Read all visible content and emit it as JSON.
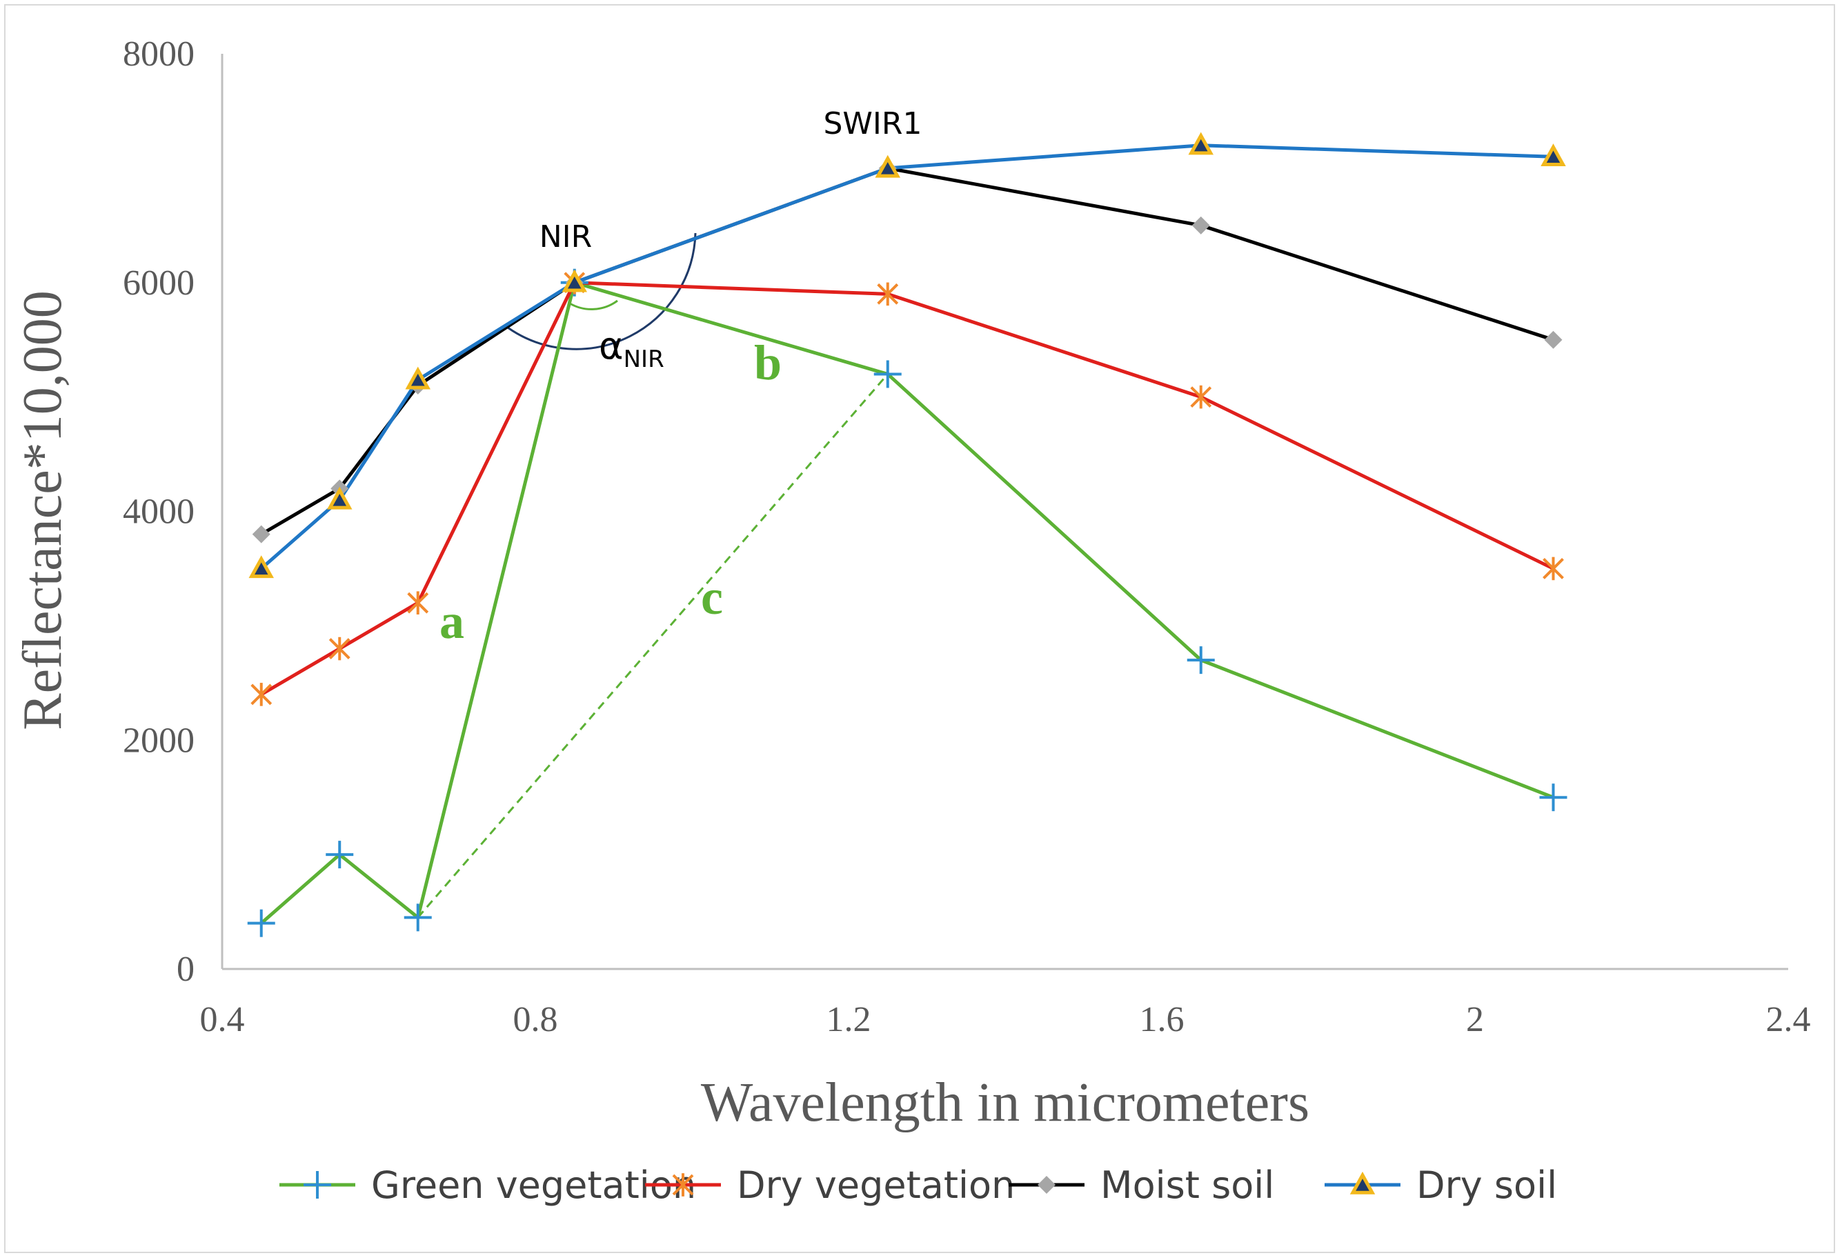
{
  "chart_data": {
    "type": "line",
    "title": "",
    "xlabel": "Wavelength in micrometers",
    "ylabel": "Reflectance*10,000",
    "xlim": [
      0.4,
      2.4
    ],
    "ylim": [
      0,
      8000
    ],
    "x_ticks": [
      "0.4",
      "0.8",
      "1.2",
      "1.6",
      "2",
      "2.4"
    ],
    "y_ticks": [
      "0",
      "2000",
      "4000",
      "6000",
      "8000"
    ],
    "x": [
      0.45,
      0.55,
      0.65,
      0.85,
      1.25,
      1.65,
      2.1
    ],
    "series": [
      {
        "name": "Green vegetation",
        "color": "#5cb135",
        "marker": "plus",
        "marker_color": "#2e8fd1",
        "values": [
          400,
          1000,
          450,
          6000,
          5200,
          2700,
          1500
        ]
      },
      {
        "name": "Dry vegetation",
        "color": "#e0201c",
        "marker": "asterisk",
        "marker_color": "#f2892b",
        "values": [
          2400,
          2800,
          3200,
          6000,
          5900,
          5000,
          3500
        ]
      },
      {
        "name": "Moist soil",
        "color": "#000000",
        "marker": "diamond",
        "marker_color": "#a6a6a6",
        "values": [
          3800,
          4200,
          5100,
          6000,
          7000,
          6500,
          5500
        ]
      },
      {
        "name": "Dry soil",
        "color": "#1f77c6",
        "marker": "triangle",
        "marker_color": "#f2b81c",
        "values": [
          3500,
          4100,
          5150,
          6000,
          7000,
          7200,
          7100
        ]
      }
    ],
    "annotations": {
      "nir": "NIR",
      "swir1": "SWIR1",
      "alpha": "α",
      "alpha_sub": "NIR",
      "a": "a",
      "b": "b",
      "c": "c"
    },
    "legend_position": "bottom"
  }
}
